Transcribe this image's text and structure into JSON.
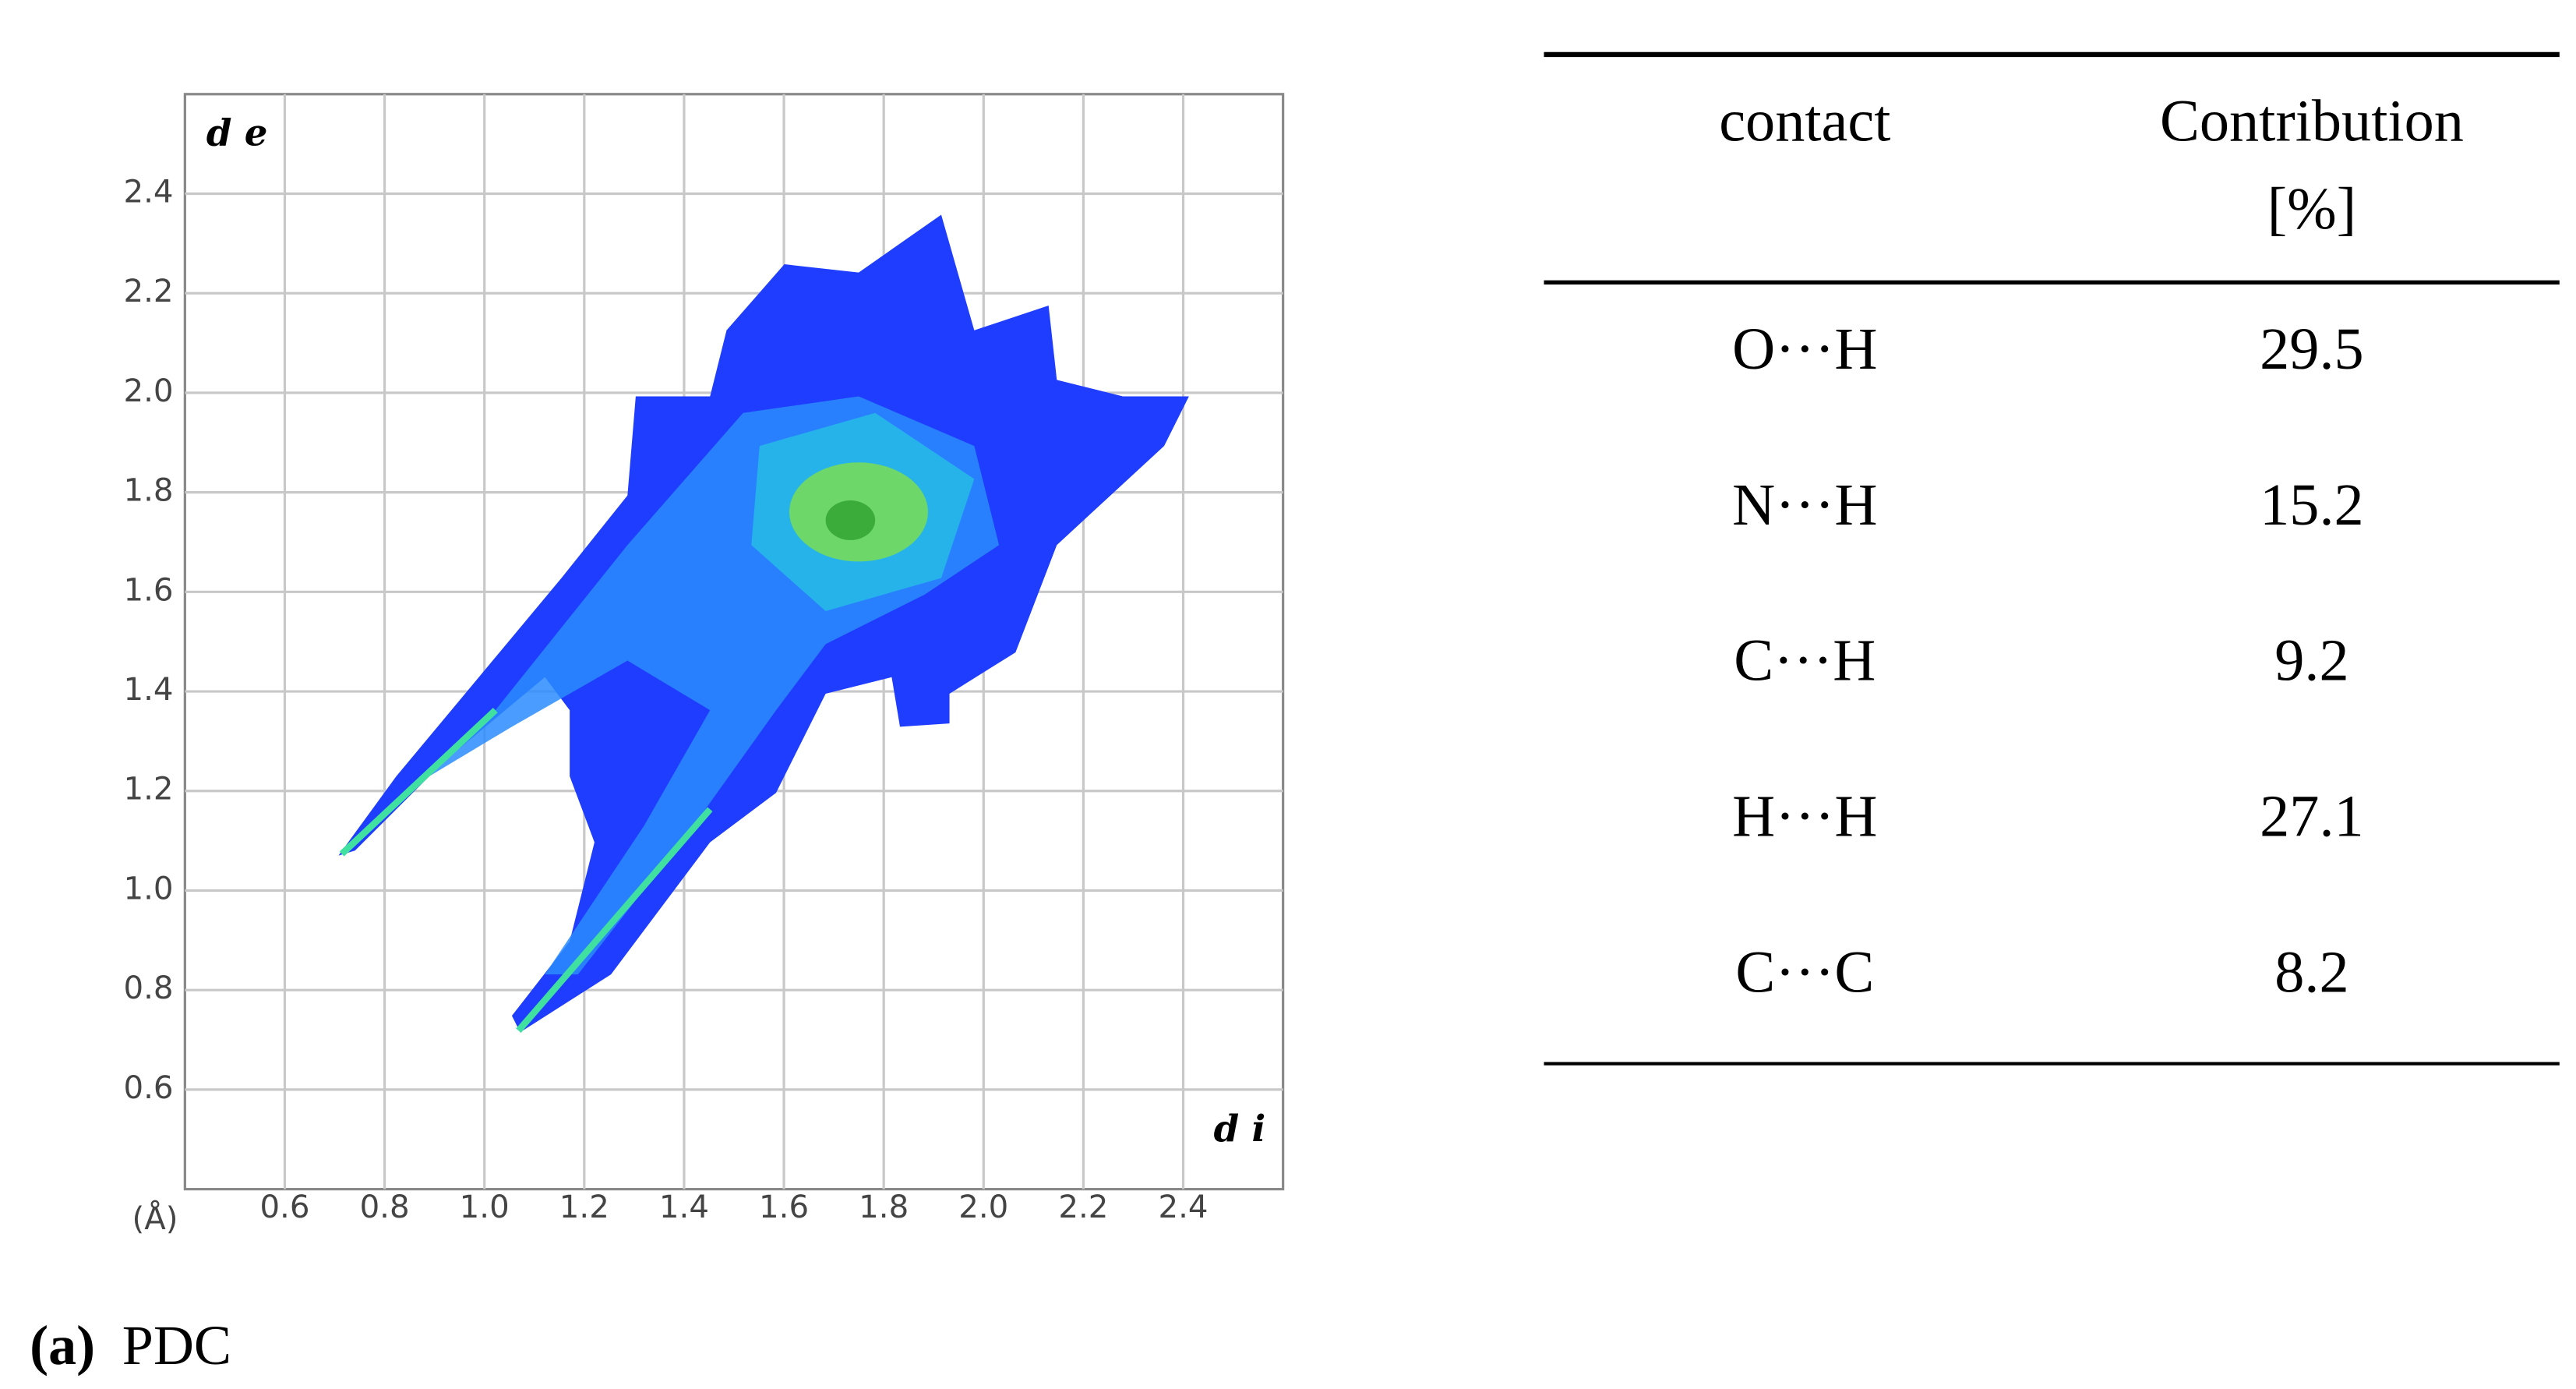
{
  "plot": {
    "y_label": "d e",
    "x_label": "d i",
    "unit": "(Å)",
    "xlim": [
      0.4,
      2.6
    ],
    "ylim": [
      0.4,
      2.6
    ],
    "xticks": [
      0.6,
      0.8,
      {
        "value": 1,
        "label": "1.0"
      },
      1.2,
      1.4,
      1.6,
      1.8,
      {
        "value": 2,
        "label": "2.0"
      },
      2.2,
      2.4
    ],
    "yticks": [
      0.6,
      0.8,
      {
        "value": 1,
        "label": "1.0"
      },
      1.2,
      1.4,
      1.6,
      1.8,
      {
        "value": 2,
        "label": "2.0"
      },
      2.2,
      2.4
    ]
  },
  "table": {
    "header": [
      [
        "contact"
      ],
      [
        "Contribution",
        "[%]"
      ]
    ],
    "rows": [
      [
        "O···H",
        29.5
      ],
      [
        "N···H",
        15.2
      ],
      [
        "C···H",
        9.2
      ],
      [
        "H···H",
        27.1
      ],
      [
        "C···C",
        8.2
      ]
    ]
  },
  "caption": {
    "label": "(a)",
    "text": "PDC"
  }
}
